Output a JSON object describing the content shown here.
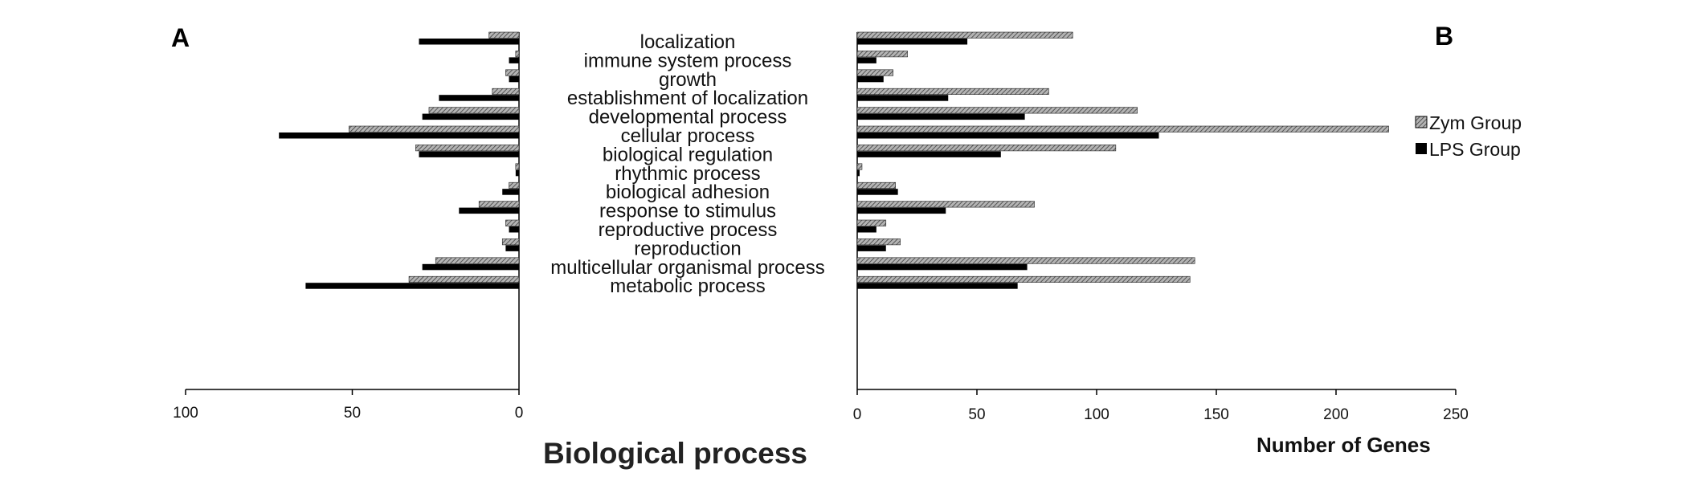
{
  "panels": {
    "left_letter": "A",
    "right_letter": "B"
  },
  "legend": {
    "zym_label": "Zym Group",
    "lps_label": "LPS Group"
  },
  "titles": {
    "main": "Biological process",
    "right_xlabel": "Number of Genes"
  },
  "colors": {
    "lps": "#000000",
    "zym_fill": "#b4b4b4",
    "zym_hatch": "#3c3c3c",
    "axis": "#000000"
  },
  "chart_data": [
    {
      "panel": "A",
      "type": "bar",
      "orientation": "horizontal",
      "direction": "reversed",
      "title": "Biological process",
      "xlabel": "",
      "ylabel": "",
      "xlim": [
        0,
        100
      ],
      "xticks": [
        100,
        50,
        0
      ],
      "categories": [
        "localization",
        "immune system process",
        "growth",
        "establishment of localization",
        "developmental process",
        "cellular process",
        "biological regulation",
        "rhythmic process",
        "biological adhesion",
        "response to stimulus",
        "reproductive process",
        "reproduction",
        "multicellular organismal process",
        "metabolic process"
      ],
      "series": [
        {
          "name": "Zym Group",
          "values": [
            9,
            1,
            4,
            8,
            27,
            51,
            31,
            1,
            3,
            12,
            4,
            5,
            25,
            33
          ]
        },
        {
          "name": "LPS Group",
          "values": [
            30,
            3,
            3,
            24,
            29,
            72,
            30,
            1,
            5,
            18,
            3,
            4,
            29,
            64
          ]
        }
      ]
    },
    {
      "panel": "B",
      "type": "bar",
      "orientation": "horizontal",
      "title": "",
      "xlabel": "Number of Genes",
      "ylabel": "",
      "xlim": [
        0,
        250
      ],
      "xticks": [
        0,
        50,
        100,
        150,
        200,
        250
      ],
      "legend_position": "right",
      "categories": [
        "localization",
        "immune system process",
        "growth",
        "establishment of localization",
        "developmental process",
        "cellular process",
        "biological regulation",
        "rhythmic process",
        "biological adhesion",
        "response to stimulus",
        "reproductive process",
        "reproduction",
        "multicellular organismal process",
        "metabolic process"
      ],
      "series": [
        {
          "name": "Zym Group",
          "values": [
            90,
            21,
            15,
            80,
            117,
            222,
            108,
            2,
            16,
            74,
            12,
            18,
            141,
            139
          ]
        },
        {
          "name": "LPS Group",
          "values": [
            46,
            8,
            11,
            38,
            70,
            126,
            60,
            1,
            17,
            37,
            8,
            12,
            71,
            67
          ]
        }
      ]
    }
  ]
}
